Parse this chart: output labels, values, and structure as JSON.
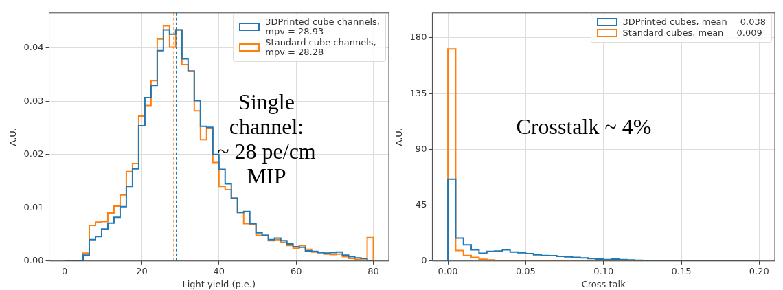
{
  "chart_data": [
    {
      "type": "histogram",
      "xlabel": "Light yield (p.e.)",
      "ylabel": "A.U.",
      "bins": [
        0,
        1.6,
        3.2,
        4.8,
        6.4,
        8,
        9.6,
        11.2,
        12.8,
        14.4,
        16,
        17.6,
        19.2,
        20.8,
        22.4,
        24,
        25.6,
        27.2,
        28.8,
        30.4,
        32,
        33.6,
        35.2,
        36.8,
        38.4,
        40,
        41.6,
        43.2,
        44.8,
        46.4,
        48,
        49.6,
        51.2,
        52.8,
        54.4,
        56,
        57.6,
        59.2,
        60.8,
        62.4,
        64,
        65.6,
        67.2,
        68.8,
        70.4,
        72,
        73.6,
        75.2,
        76.8,
        78.4,
        80
      ],
      "series": [
        {
          "name": "3DPrinted cube channels,\nmpv = 28.93",
          "color": "#1f77b4",
          "values": [
            0,
            0,
            0,
            0.0011,
            0.004,
            0.0046,
            0.006,
            0.0071,
            0.0082,
            0.0102,
            0.014,
            0.0173,
            0.0254,
            0.0307,
            0.033,
            0.0395,
            0.0434,
            0.0426,
            0.0434,
            0.038,
            0.0357,
            0.0301,
            0.0253,
            0.0251,
            0.02,
            0.0172,
            0.0145,
            0.0118,
            0.0091,
            0.0093,
            0.007,
            0.0053,
            0.0048,
            0.004,
            0.0043,
            0.0038,
            0.0032,
            0.0027,
            0.0026,
            0.0019,
            0.0018,
            0.0016,
            0.0015,
            0.0016,
            0.0017,
            0.0011,
            0.0008,
            0.0006,
            0.0005,
            0
          ]
        },
        {
          "name": "Standard cube channels,\nmpv = 28.28",
          "color": "#ff7f0e",
          "values": [
            0,
            0,
            0,
            0.0015,
            0.0067,
            0.0073,
            0.0074,
            0.009,
            0.0103,
            0.0124,
            0.0168,
            0.0183,
            0.0272,
            0.0292,
            0.0339,
            0.0417,
            0.0442,
            0.0402,
            0.0434,
            0.0369,
            0.0356,
            0.0282,
            0.0228,
            0.0249,
            0.0185,
            0.014,
            0.0134,
            0.0118,
            0.0091,
            0.007,
            0.0068,
            0.0048,
            0.0048,
            0.0038,
            0.004,
            0.0035,
            0.0029,
            0.0024,
            0.0029,
            0.0022,
            0.0017,
            0.0016,
            0.0013,
            0.0012,
            0.0013,
            0.0008,
            0.0005,
            0.0003,
            0.0002,
            0.0044
          ]
        }
      ],
      "xlim": [
        -4,
        84
      ],
      "xticks": [
        0,
        20,
        40,
        60,
        80
      ],
      "ylim": [
        0,
        0.0466
      ],
      "yticks": [
        {
          "value": 0,
          "label": "0.00"
        },
        {
          "value": 0.01,
          "label": "0.01"
        },
        {
          "value": 0.02,
          "label": "0.02"
        },
        {
          "value": 0.03,
          "label": "0.03"
        },
        {
          "value": 0.04,
          "label": "0.04"
        }
      ],
      "ref_lines": [
        {
          "axis": "x",
          "value": 28.93,
          "color": "#1f77b4",
          "line_style": "dashed"
        },
        {
          "axis": "x",
          "value": 28.28,
          "color": "#ff7f0e",
          "line_style": "dashed"
        }
      ],
      "annotations": [
        "Single\nchannel:\n~ 28 pe/cm\nMIP"
      ],
      "grid": true,
      "legend": "top right"
    },
    {
      "type": "histogram",
      "xlabel": "Cross talk",
      "ylabel": "A.U.",
      "bins": [
        0,
        0.005,
        0.01,
        0.015,
        0.02,
        0.025,
        0.03,
        0.035,
        0.04,
        0.045,
        0.05,
        0.055,
        0.06,
        0.065,
        0.07,
        0.075,
        0.08,
        0.085,
        0.09,
        0.095,
        0.1,
        0.105,
        0.11,
        0.115,
        0.12,
        0.125,
        0.13,
        0.135,
        0.14,
        0.145,
        0.15,
        0.155,
        0.16,
        0.165,
        0.17,
        0.175,
        0.18,
        0.185,
        0.19,
        0.195,
        0.2
      ],
      "series": [
        {
          "name": "3DPrinted cubes, mean = 0.038",
          "color": "#1f77b4",
          "values": [
            66,
            18.4,
            13,
            9,
            6.3,
            7.8,
            8.1,
            9,
            7.2,
            6.7,
            6,
            5,
            4.5,
            4.3,
            3.8,
            3.3,
            2.9,
            2.5,
            2,
            1.5,
            1.2,
            1.5,
            1.2,
            0.9,
            0.6,
            0.4,
            0.3,
            0.3,
            0.2,
            0.2,
            0.2,
            0.1,
            0.2,
            0.1,
            0.1,
            0.1,
            0.1,
            0.1,
            0.1,
            0
          ]
        },
        {
          "name": "Standard cubes, mean = 0.009",
          "color": "#ff7f0e",
          "values": [
            171,
            8.5,
            4.5,
            3,
            1.4,
            0.9,
            0.5,
            0.4,
            0.5,
            0.5,
            0.4,
            0.3,
            0.3,
            0.2,
            0.2,
            0.2,
            0.1,
            0.1,
            0.1,
            0.1,
            0.1,
            0.1,
            0,
            0.1,
            0,
            0,
            0,
            0,
            0,
            0,
            0,
            0,
            0,
            0,
            0,
            0,
            0,
            0,
            0,
            0
          ]
        }
      ],
      "xlim": [
        -0.01,
        0.21
      ],
      "xticks": [
        {
          "value": 0,
          "label": "0.00"
        },
        {
          "value": 0.05,
          "label": "0.05"
        },
        {
          "value": 0.1,
          "label": "0.10"
        },
        {
          "value": 0.15,
          "label": "0.15"
        },
        {
          "value": 0.2,
          "label": "0.20"
        }
      ],
      "ylim": [
        0,
        200
      ],
      "yticks": [
        0,
        45,
        90,
        135,
        180
      ],
      "annotations": [
        "Crosstalk ~ 4%"
      ],
      "grid": true,
      "legend": "top right"
    }
  ]
}
